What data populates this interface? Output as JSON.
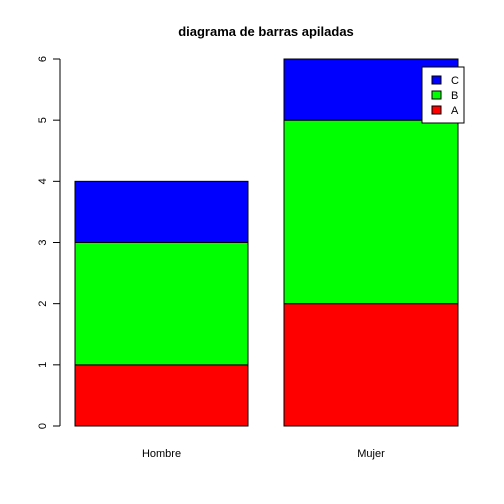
{
  "chart_data": {
    "type": "bar",
    "stacked": true,
    "title": "diagrama de barras apiladas",
    "xlabel": "",
    "ylabel": "",
    "categories": [
      "Hombre",
      "Mujer"
    ],
    "series": [
      {
        "name": "A",
        "values": [
          1,
          2
        ],
        "color": "#ff0000"
      },
      {
        "name": "B",
        "values": [
          2,
          3
        ],
        "color": "#00ff00"
      },
      {
        "name": "C",
        "values": [
          1,
          1
        ],
        "color": "#0000ff"
      }
    ],
    "ylim": [
      0,
      6
    ],
    "yticks": [
      0,
      1,
      2,
      3,
      4,
      5,
      6
    ],
    "grid": false,
    "legend": {
      "position": "top-right",
      "order": [
        "C",
        "B",
        "A"
      ]
    }
  }
}
